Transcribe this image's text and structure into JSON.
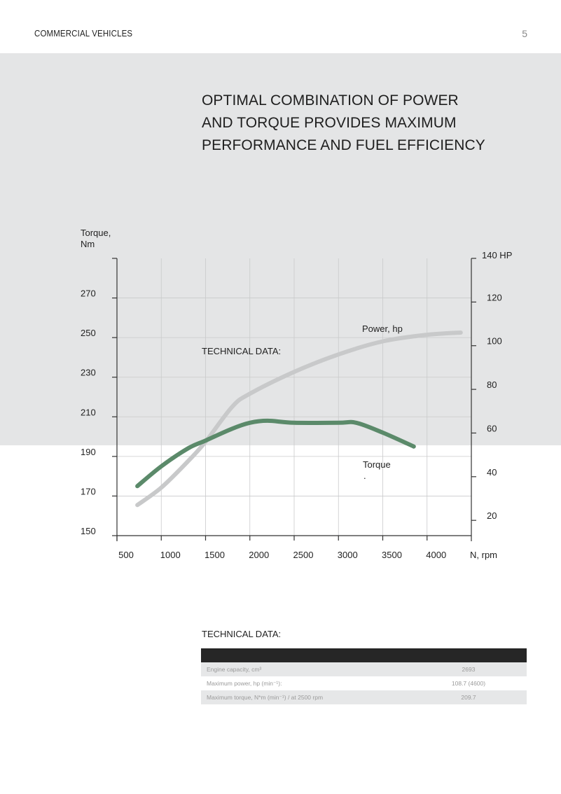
{
  "header": {
    "section": "COMMERCIAL VEHICLES",
    "page_number": "5"
  },
  "headline": {
    "lines": [
      "OPTIMAL COMBINATION OF POWER",
      "AND TORQUE PROVIDES MAXIMUM",
      "PERFORMANCE AND FUEL EFFICIENCY"
    ]
  },
  "chart_data": {
    "type": "line",
    "title": "",
    "overlay_label": "TECHNICAL DATA:",
    "xlabel": "N, rpm",
    "ylabel_left": [
      "Torque,",
      "Nm"
    ],
    "ylabel_right": "HP",
    "x_ticks": [
      500,
      1000,
      1500,
      2000,
      2500,
      3000,
      3500,
      4000
    ],
    "xlim": [
      500,
      4500
    ],
    "left_axis": {
      "ticks": [
        150,
        170,
        190,
        210,
        230,
        250,
        270
      ],
      "ylim": [
        150,
        290
      ]
    },
    "right_axis": {
      "ticks": [
        20,
        40,
        60,
        80,
        100,
        120,
        140
      ],
      "top_label": "140 HP",
      "ylim": [
        13,
        140
      ]
    },
    "grid": true,
    "series": [
      {
        "name": "Power, hp",
        "axis": "right",
        "color": "#c8c9ca",
        "x": [
          730,
          1000,
          1300,
          1500,
          1800,
          2000,
          2500,
          3000,
          3500,
          4000,
          4380
        ],
        "values": [
          27,
          35,
          47,
          56,
          72,
          78,
          88,
          96,
          102,
          105,
          106
        ]
      },
      {
        "name": "Torque",
        "axis": "left",
        "color": "#5b8a6a",
        "x": [
          730,
          1000,
          1300,
          1500,
          1800,
          2000,
          2200,
          2500,
          3000,
          3200,
          3500,
          3850
        ],
        "values": [
          175,
          185,
          194,
          198,
          204,
          207,
          208,
          207,
          207,
          207,
          202,
          195
        ]
      }
    ],
    "series_labels": {
      "power": "Power, hp",
      "torque": "Torque",
      "torque_suffix": "."
    }
  },
  "technical_data": {
    "title": "TECHNICAL DATA:",
    "rows": [
      {
        "label": "Engine capacity, cm³",
        "value": "2693"
      },
      {
        "label": "Maximum power, hp (min⁻¹):",
        "value": "108.7 (4600)"
      },
      {
        "label": "Maximum torque, N*m (min⁻¹) / at 2500 rpm",
        "value": "209.7"
      }
    ]
  },
  "colors": {
    "band": "#e4e5e6",
    "torque": "#5b8a6a",
    "power": "#c8c9ca",
    "table_header": "#262626"
  }
}
